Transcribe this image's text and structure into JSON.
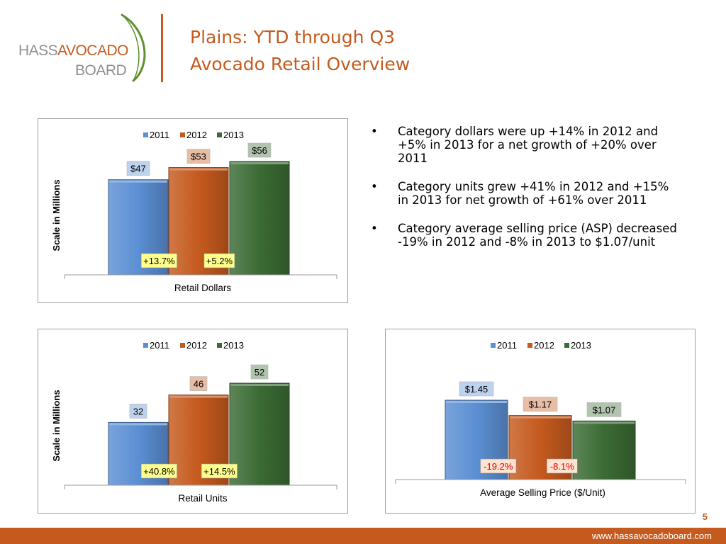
{
  "logo": {
    "text_hass": "HASS",
    "text_avocado": "AVOCADO",
    "text_board": "BOARD"
  },
  "title": {
    "line1": "Plains: YTD through Q3",
    "line2": "Avocado Retail Overview"
  },
  "bullets": [
    "Category dollars were up +14% in 2012 and +5% in 2013 for a net growth of +20% over 2011",
    "Category units grew +41% in 2012 and +15% in 2013 for net growth of +61% over 2011",
    "Category average selling price (ASP) decreased -19% in 2012 and -8% in 2013 to $1.07/unit"
  ],
  "page_number": "5",
  "footer_url": "www.hassavocadoboard.com",
  "colors": {
    "brand": "#c55a1e",
    "s2011": "#5b8fd3",
    "s2012": "#c55a1e",
    "s2013": "#3b6b34"
  },
  "chart_data": [
    {
      "type": "bar",
      "categories": [
        "2011",
        "2012",
        "2013"
      ],
      "values": [
        47,
        53,
        56
      ],
      "value_labels": [
        "$47",
        "$53",
        "$56"
      ],
      "growth_labels": [
        "+13.7%",
        "+5.2%"
      ],
      "xlabel": "Retail Dollars",
      "ylabel": "Scale in Millions",
      "legend": [
        "2011",
        "2012",
        "2013"
      ],
      "legend_position": "top",
      "grid": false
    },
    {
      "type": "bar",
      "categories": [
        "2011",
        "2012",
        "2013"
      ],
      "values": [
        32,
        46,
        52
      ],
      "value_labels": [
        "32",
        "46",
        "52"
      ],
      "growth_labels": [
        "+40.8%",
        "+14.5%"
      ],
      "xlabel": "Retail Units",
      "ylabel": "Scale in Millions",
      "legend": [
        "2011",
        "2012",
        "2013"
      ],
      "legend_position": "top",
      "grid": false
    },
    {
      "type": "bar",
      "categories": [
        "2011",
        "2012",
        "2013"
      ],
      "values": [
        1.45,
        1.17,
        1.07
      ],
      "value_labels": [
        "$1.45",
        "$1.17",
        "$1.07"
      ],
      "growth_labels": [
        "-19.2%",
        "-8.1%"
      ],
      "xlabel": "Average Selling Price ($/Unit)",
      "ylabel": "",
      "legend": [
        "2011",
        "2012",
        "2013"
      ],
      "legend_position": "top",
      "grid": false
    }
  ]
}
